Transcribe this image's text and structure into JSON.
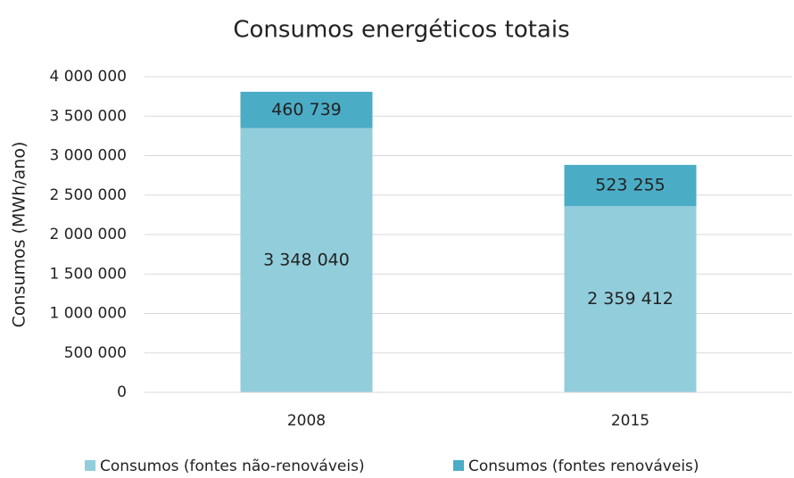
{
  "chart_data": {
    "type": "stacked_bar",
    "title": "Consumos energéticos totais",
    "ylabel": "Consumos (MWh/ano)",
    "categories": [
      "2008",
      "2015"
    ],
    "series": [
      {
        "name": "Consumos (fontes não-renováveis)",
        "color": "#92cddc",
        "values": [
          3348040,
          2359412
        ],
        "value_labels": [
          "3 348 040",
          "2 359 412"
        ]
      },
      {
        "name": "Consumos (fontes renováveis)",
        "color": "#4bacc6",
        "values": [
          460739,
          523255
        ],
        "value_labels": [
          "460 739",
          "523 255"
        ]
      }
    ],
    "ylim": [
      0,
      4000000
    ],
    "yticks": [
      0,
      {
        "value": 500000,
        "label": "500 000"
      },
      {
        "value": 1000000,
        "label": "1 000 000"
      },
      {
        "value": 1500000,
        "label": "1 500 000"
      },
      {
        "value": 2000000,
        "label": "2 000 000"
      },
      {
        "value": 2500000,
        "label": "2 500 000"
      },
      {
        "value": 3000000,
        "label": "3 000 000"
      },
      {
        "value": 3500000,
        "label": "3 500 000"
      },
      {
        "value": 4000000,
        "label": "4 000 000"
      }
    ],
    "grid": true,
    "legend": "bottom"
  }
}
